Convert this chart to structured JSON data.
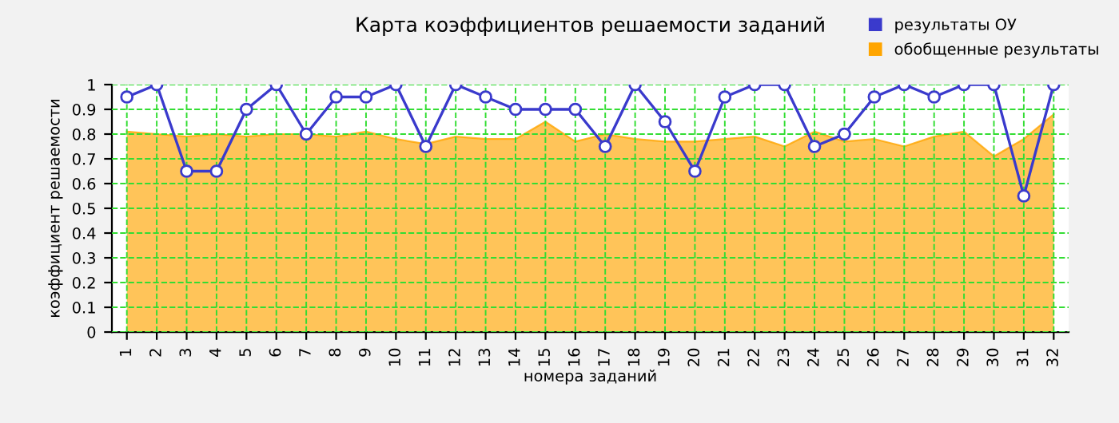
{
  "chart_data": {
    "type": "line",
    "title": "Карта коэффициентов решаемости заданий",
    "xlabel": "номера заданий",
    "ylabel": "коэффициент решаемости",
    "categories": [
      "1",
      "2",
      "3",
      "4",
      "5",
      "6",
      "7",
      "8",
      "9",
      "10",
      "11",
      "12",
      "13",
      "14",
      "15",
      "16",
      "17",
      "18",
      "19",
      "20",
      "21",
      "22",
      "23",
      "24",
      "25",
      "26",
      "27",
      "28",
      "29",
      "30",
      "31",
      "32"
    ],
    "series": [
      {
        "name": "результаты ОУ",
        "color": "#3a3acc",
        "marker": "circle",
        "values": [
          0.95,
          1,
          0.65,
          0.65,
          0.9,
          1,
          0.8,
          0.95,
          0.95,
          1,
          0.75,
          1,
          0.95,
          0.9,
          0.9,
          0.9,
          0.75,
          1,
          0.85,
          0.65,
          0.95,
          1,
          1,
          0.75,
          0.8,
          0.95,
          1,
          0.95,
          1,
          1,
          0.55,
          1
        ]
      },
      {
        "name": "обобщенные результаты",
        "color": "#ffa500",
        "type": "area",
        "values": [
          0.81,
          0.8,
          0.79,
          0.8,
          0.79,
          0.8,
          0.8,
          0.79,
          0.81,
          0.78,
          0.76,
          0.79,
          0.78,
          0.78,
          0.85,
          0.77,
          0.8,
          0.78,
          0.77,
          0.77,
          0.78,
          0.79,
          0.75,
          0.81,
          0.77,
          0.78,
          0.75,
          0.79,
          0.81,
          0.71,
          0.78,
          0.88
        ]
      }
    ],
    "ylim": [
      0,
      1
    ],
    "yticks": [
      0,
      0.1,
      0.2,
      0.3,
      0.4,
      0.5,
      0.6,
      0.7,
      0.8,
      0.9,
      1
    ],
    "grid": true,
    "legend": "top right"
  }
}
